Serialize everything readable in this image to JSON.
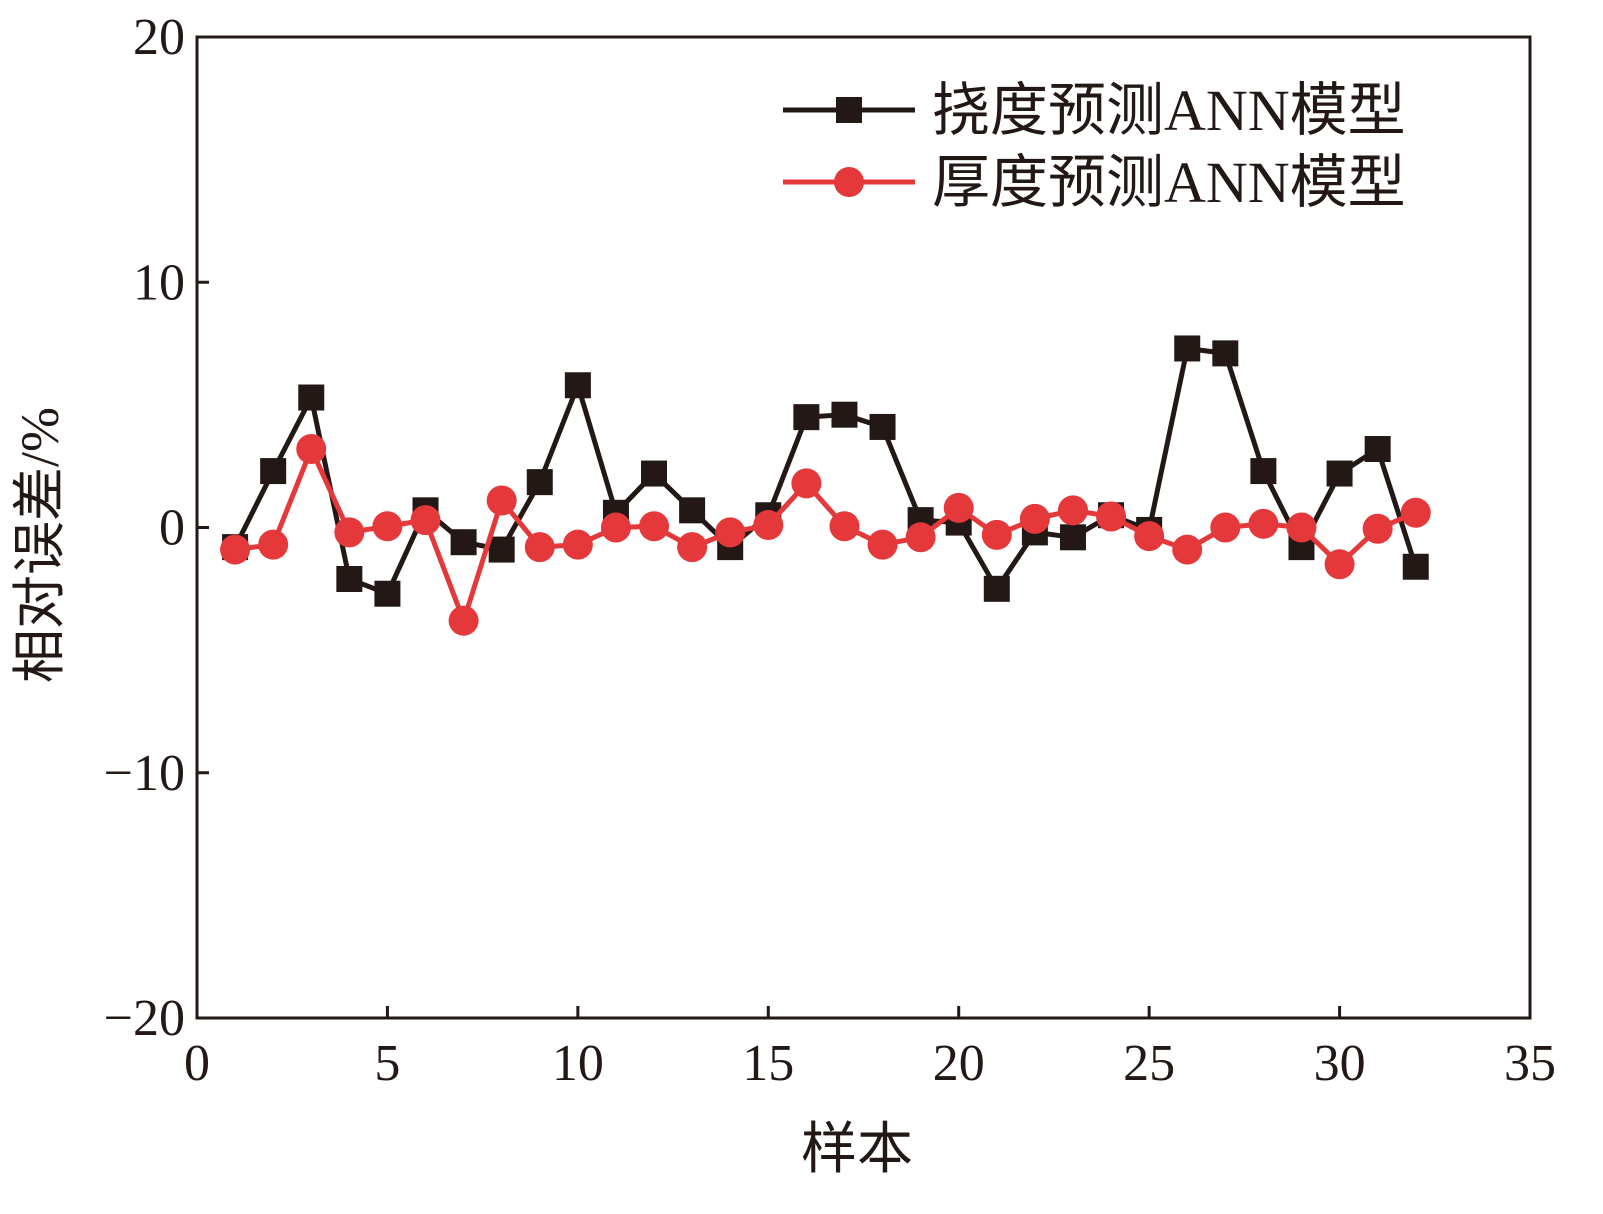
{
  "chart_data": {
    "type": "line",
    "title": "",
    "xlabel": "样本",
    "ylabel": "相对误差/%",
    "xlim": [
      0,
      35
    ],
    "ylim": [
      -20,
      20
    ],
    "xticks": [
      0,
      5,
      10,
      15,
      20,
      25,
      30,
      35
    ],
    "xtick_labels": [
      "0",
      "5",
      "10",
      "15",
      "20",
      "25",
      "30",
      "35"
    ],
    "yticks": [
      20,
      10,
      0,
      -10,
      -20
    ],
    "ytick_labels": [
      "20",
      "10",
      "0",
      "−10",
      "−20"
    ],
    "grid": false,
    "legend_position": "top-right",
    "x": [
      1,
      2,
      3,
      4,
      5,
      6,
      7,
      8,
      9,
      10,
      11,
      12,
      13,
      14,
      15,
      16,
      17,
      18,
      19,
      20,
      21,
      22,
      23,
      24,
      25,
      26,
      27,
      28,
      29,
      30,
      31,
      32
    ],
    "series": [
      {
        "name": "挠度预测ANN模型",
        "color": "#231815",
        "marker": "square",
        "values": [
          -0.8,
          2.3,
          5.3,
          -2.1,
          -2.7,
          0.7,
          -0.6,
          -0.9,
          1.85,
          5.8,
          0.6,
          2.2,
          0.7,
          -0.8,
          0.5,
          4.5,
          4.6,
          4.1,
          0.3,
          0.2,
          -2.5,
          -0.2,
          -0.4,
          0.5,
          -0.1,
          7.3,
          7.1,
          2.3,
          -0.8,
          2.2,
          3.2,
          -1.6
        ]
      },
      {
        "name": "厚度预测ANN模型",
        "color": "#e5383b",
        "marker": "circle",
        "values": [
          -0.9,
          -0.7,
          3.2,
          -0.2,
          0.05,
          0.3,
          -3.8,
          1.1,
          -0.8,
          -0.7,
          0,
          0.05,
          -0.8,
          -0.2,
          0.1,
          1.8,
          0.05,
          -0.7,
          -0.4,
          0.8,
          -0.3,
          0.35,
          0.7,
          0.45,
          -0.35,
          -0.9,
          0,
          0.15,
          0,
          -1.5,
          -0.05,
          0.6
        ]
      }
    ]
  }
}
